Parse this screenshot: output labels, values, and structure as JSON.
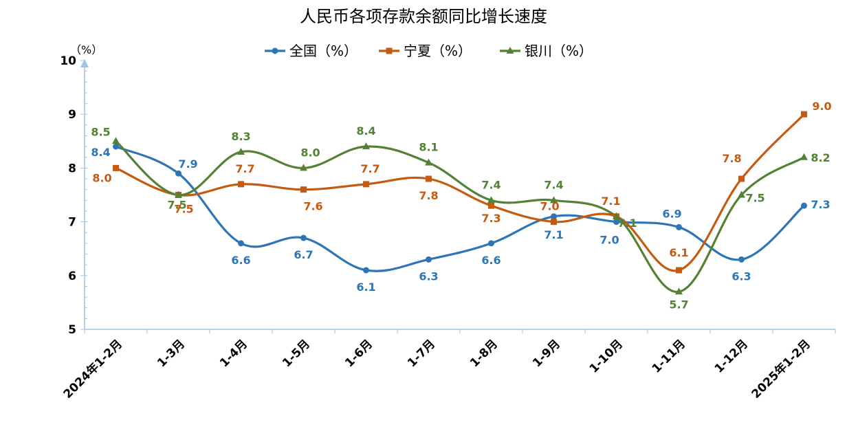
{
  "chart_data": {
    "type": "line",
    "title": "人民币各项存款余额同比增长速度",
    "unit_label": "（%）",
    "categories": [
      "2024年1-2月",
      "1-3月",
      "1-4月",
      "1-5月",
      "1-6月",
      "1-7月",
      "1-8月",
      "1-9月",
      "1-10月",
      "1-11月",
      "1-12月",
      "2025年1-2月"
    ],
    "ylim": [
      5,
      10
    ],
    "yticks": [
      "5",
      "6",
      "7",
      "8",
      "9",
      "10"
    ],
    "grid": false,
    "legend_position": "top",
    "series": [
      {
        "name": "全国（%）",
        "color": "#2E75B6",
        "marker": "circle",
        "values": [
          8.4,
          7.9,
          6.6,
          6.7,
          6.1,
          6.3,
          6.6,
          7.1,
          7.0,
          6.9,
          6.3,
          7.3
        ],
        "labels": [
          "8.4",
          "7.9",
          "6.6",
          "6.7",
          "6.1",
          "6.3",
          "6.6",
          "7.1",
          "7.0",
          "6.9",
          "6.3",
          "7.3"
        ]
      },
      {
        "name": "宁夏（%）",
        "color": "#C55A11",
        "marker": "square",
        "values": [
          8.0,
          7.5,
          7.7,
          7.6,
          7.7,
          7.8,
          7.3,
          7.0,
          7.1,
          6.1,
          7.8,
          9.0
        ],
        "labels": [
          "8.0",
          "7.5",
          "7.7",
          "7.6",
          "7.7",
          "7.8",
          "7.3",
          "7.0",
          "7.1",
          "6.1",
          "7.8",
          "9.0"
        ]
      },
      {
        "name": "银川（%）",
        "color": "#548235",
        "marker": "triangle",
        "values": [
          8.5,
          7.5,
          8.3,
          8.0,
          8.4,
          8.1,
          7.4,
          7.4,
          7.1,
          5.7,
          7.5,
          8.2
        ],
        "labels": [
          "8.5",
          "7.5",
          "8.3",
          "8.0",
          "8.4",
          "8.1",
          "7.4",
          "7.4",
          "7.1",
          "5.7",
          "7.5",
          "8.2"
        ]
      }
    ]
  }
}
